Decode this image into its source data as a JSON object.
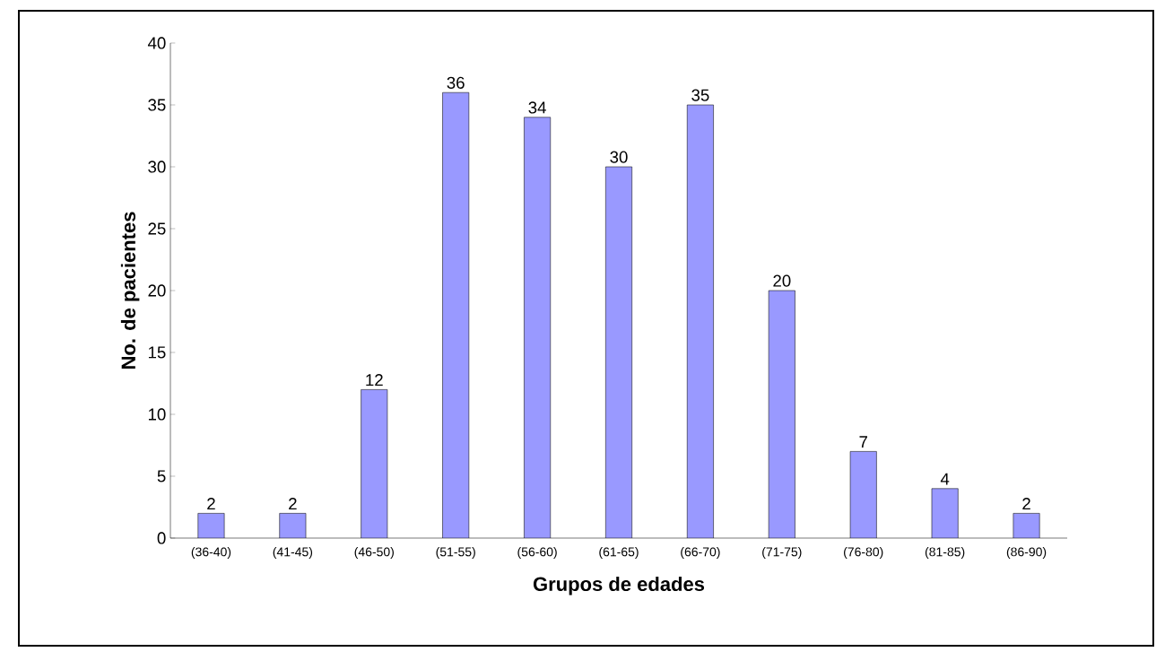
{
  "chart_data": {
    "type": "bar",
    "xlabel": "Grupos de edades",
    "ylabel": "No. de pacientes",
    "categories": [
      "(36-40)",
      "(41-45)",
      "(46-50)",
      "(51-55)",
      "(56-60)",
      "(61-65)",
      "(66-70)",
      "(71-75)",
      "(76-80)",
      "(81-85)",
      "(86-90)"
    ],
    "values": [
      2,
      2,
      12,
      36,
      34,
      30,
      35,
      20,
      7,
      4,
      2
    ],
    "color": "#9999ff",
    "data_labels": true,
    "ylim": [
      0,
      40
    ],
    "yticks": [
      0,
      5,
      10,
      15,
      20,
      25,
      30,
      35,
      40
    ]
  }
}
